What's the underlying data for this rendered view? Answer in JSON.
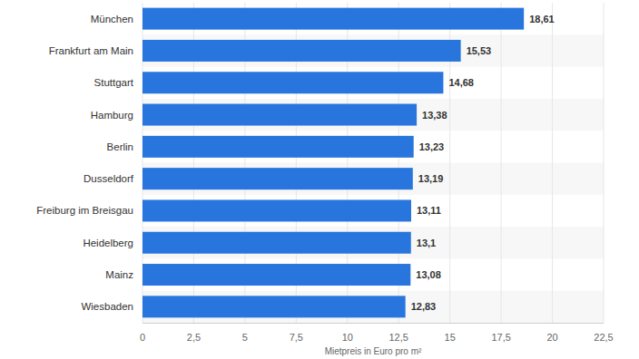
{
  "chart_data": {
    "type": "bar",
    "orientation": "horizontal",
    "xlabel": "Mietpreis in Euro pro m²",
    "categories": [
      "München",
      "Frankfurt am Main",
      "Stuttgart",
      "Hamburg",
      "Berlin",
      "Dusseldorf",
      "Freiburg im Breisgau",
      "Heidelberg",
      "Mainz",
      "Wiesbaden"
    ],
    "values": [
      18.61,
      15.53,
      14.68,
      13.38,
      13.23,
      13.19,
      13.11,
      13.1,
      13.08,
      12.83
    ],
    "value_labels": [
      "18,61",
      "15,53",
      "14,68",
      "13,38",
      "13,23",
      "13,19",
      "13,11",
      "13,1",
      "13,08",
      "12,83"
    ],
    "color": "#2876dd",
    "xlim": [
      0,
      22.5
    ],
    "xticks": [
      0,
      {
        "value": 2.5,
        "label": "2,5"
      },
      5,
      {
        "value": 7.5,
        "label": "7,5"
      },
      10,
      {
        "value": 12.5,
        "label": "12,5"
      },
      15,
      {
        "value": 17.5,
        "label": "17,5"
      },
      20,
      {
        "value": 22.5,
        "label": "22,5"
      }
    ],
    "grid": true,
    "data_labels": true
  }
}
